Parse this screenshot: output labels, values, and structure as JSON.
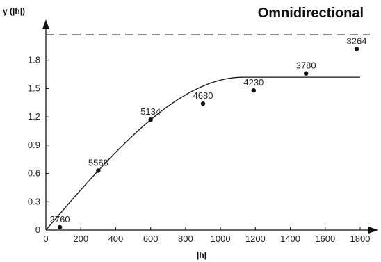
{
  "chart_data": {
    "type": "scatter",
    "title": "Omnidirectional",
    "xlabel": "|h|",
    "ylabel": "γ (|h|)",
    "xlim": [
      0,
      1800
    ],
    "ylim": [
      0,
      2.1
    ],
    "x_ticks": [
      "0",
      "200",
      "400",
      "600",
      "800",
      "1000",
      "1200",
      "1400",
      "1600",
      "1800"
    ],
    "y_ticks": [
      "0",
      "0.3",
      "0.6",
      "0.9",
      "1.2",
      "1.5",
      "1.8"
    ],
    "grid": false,
    "legend": "none",
    "points": [
      {
        "x": 80,
        "y": 0.03,
        "label": "2760"
      },
      {
        "x": 300,
        "y": 0.63,
        "label": "5568"
      },
      {
        "x": 600,
        "y": 1.17,
        "label": "5134"
      },
      {
        "x": 900,
        "y": 1.34,
        "label": "4680"
      },
      {
        "x": 1190,
        "y": 1.48,
        "label": "4230"
      },
      {
        "x": 1490,
        "y": 1.66,
        "label": "3780"
      },
      {
        "x": 1780,
        "y": 1.92,
        "label": "3264"
      }
    ],
    "model_fit": {
      "type": "spherical",
      "nugget": 0,
      "sill": 1.62,
      "range": 1130
    },
    "sample_variance": 2.07,
    "colors": {
      "axis": "#111111",
      "points": "#111111",
      "fit_line": "#111111",
      "variance_line": "#222222"
    }
  }
}
